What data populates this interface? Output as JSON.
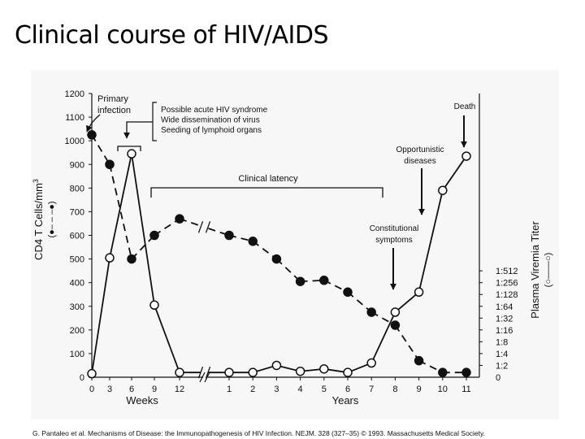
{
  "slide": {
    "title": "Clinical course of HIV/AIDS",
    "citation": "G. Pantaleo et al. Mechanisms of Disease: the Immunopathogenesis of HIV Infection. NEJM. 328 (327–35) © 1993. Massachusetts Medical Society."
  },
  "chart_data": {
    "type": "line",
    "title": "",
    "grid": false,
    "legend": "none",
    "colors": {
      "line": "#111111",
      "filled_marker": "#111111",
      "open_marker": "#ffffff"
    },
    "left_axis": {
      "label_prefix": "CD4 T Cells/mm",
      "label_superscript": "3",
      "legend_symbol": "(●– – –●)",
      "ticks": [
        0,
        100,
        200,
        300,
        400,
        500,
        600,
        700,
        800,
        900,
        1000,
        1100,
        1200
      ],
      "ylim": [
        0,
        1200
      ]
    },
    "right_axis": {
      "label": "Plasma Viremia Titer",
      "legend_symbol": "(○——○)",
      "ticks": [
        "1:2",
        "1:4",
        "1:8",
        "1:16",
        "1:32",
        "1:64",
        "1:128",
        "1:256",
        "1:512"
      ]
    },
    "x_axis": {
      "weeks": {
        "label": "Weeks",
        "ticks": [
          "0",
          "3",
          "6",
          "9",
          "12"
        ]
      },
      "years": {
        "label": "Years",
        "ticks": [
          "1",
          "2",
          "3",
          "4",
          "5",
          "6",
          "7",
          "8",
          "9",
          "10",
          "11"
        ]
      }
    },
    "series": [
      {
        "style": "dashed-filled",
        "points": [
          {
            "x": "wk 0",
            "y": 1025
          },
          {
            "x": "wk 3",
            "y": 900
          },
          {
            "x": "wk 6",
            "y": 500
          },
          {
            "x": "wk 9",
            "y": 600
          },
          {
            "x": "wk 12",
            "y": 670
          },
          {
            "x": "yr 1",
            "y": 600
          },
          {
            "x": "yr 2",
            "y": 575
          },
          {
            "x": "yr 3",
            "y": 500
          },
          {
            "x": "yr 4",
            "y": 405
          },
          {
            "x": "yr 5",
            "y": 410
          },
          {
            "x": "yr 6",
            "y": 360
          },
          {
            "x": "yr 7",
            "y": 275
          },
          {
            "x": "yr 8",
            "y": 220
          },
          {
            "x": "yr 9",
            "y": 70
          },
          {
            "x": "yr 10",
            "y": 20
          },
          {
            "x": "yr 11",
            "y": 20
          }
        ]
      },
      {
        "style": "solid-open",
        "points": [
          {
            "x": "wk 0",
            "y": 15
          },
          {
            "x": "wk 3",
            "y": 505
          },
          {
            "x": "wk 6",
            "y": 945
          },
          {
            "x": "wk 9",
            "y": 305
          },
          {
            "x": "wk 12",
            "y": 20
          },
          {
            "x": "yr 1",
            "y": 20
          },
          {
            "x": "yr 2",
            "y": 20
          },
          {
            "x": "yr 3",
            "y": 50
          },
          {
            "x": "yr 4",
            "y": 25
          },
          {
            "x": "yr 5",
            "y": 35
          },
          {
            "x": "yr 6",
            "y": 20
          },
          {
            "x": "yr 7",
            "y": 60
          },
          {
            "x": "yr 8",
            "y": 275
          },
          {
            "x": "yr 9",
            "y": 360
          },
          {
            "x": "yr 10",
            "y": 790
          },
          {
            "x": "yr 11",
            "y": 935
          }
        ]
      }
    ],
    "annotations": {
      "primary_infection": [
        "Primary",
        "infection"
      ],
      "acute_phase": [
        "Possible acute HIV syndrome",
        "Wide dissemination of virus",
        "Seeding of lymphoid organs"
      ],
      "clinical_latency": "Clinical latency",
      "opportunistic": [
        "Opportunistic",
        "diseases"
      ],
      "death": "Death",
      "constitutional": [
        "Constitutional",
        "symptoms"
      ]
    }
  }
}
